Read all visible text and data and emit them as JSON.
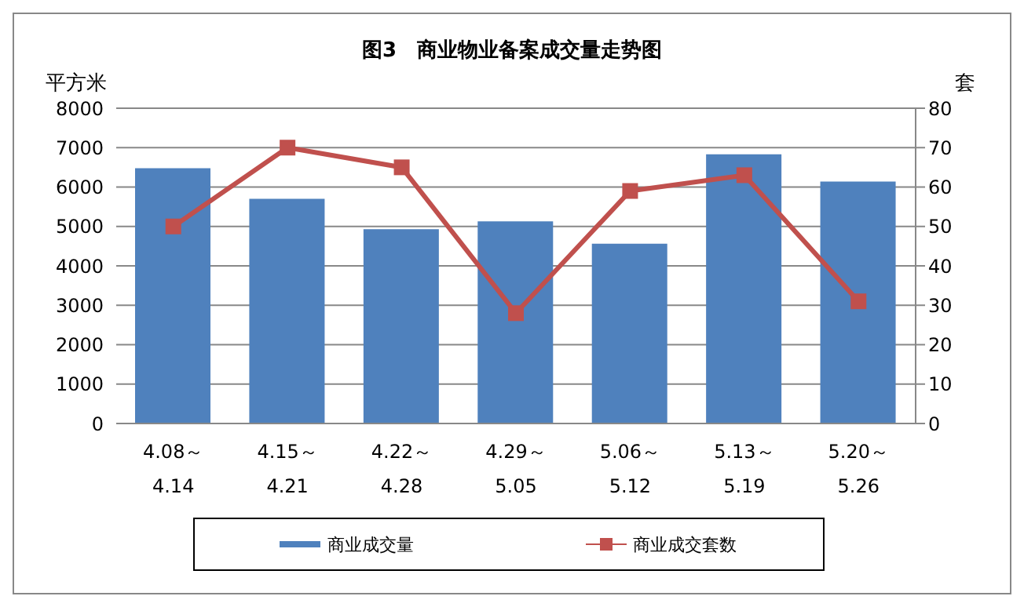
{
  "chart_data": {
    "type": "bar",
    "title": "图3　商业物业备案成交量走势图",
    "ylabel": "平方米",
    "y2label": "套",
    "categories": [
      "4.08～\n4.14",
      "4.15～\n4.21",
      "4.22～\n4.28",
      "4.29～\n5.05",
      "5.06～\n5.12",
      "5.13～\n5.19",
      "5.20～\n5.26"
    ],
    "series": [
      {
        "name": "商业成交量",
        "color": "#4f81bd",
        "values": [
          6480,
          5700,
          4930,
          5130,
          4560,
          6830,
          6140
        ]
      },
      {
        "name": "商业成交套数",
        "type": "line",
        "axis": "y2",
        "color": "#c0504d",
        "values": [
          50,
          70,
          65,
          28,
          59,
          63,
          31
        ]
      }
    ],
    "ylim": [
      0,
      8000
    ],
    "yticks": [
      0,
      1000,
      2000,
      3000,
      4000,
      5000,
      6000,
      7000,
      8000
    ],
    "y2lim": [
      0,
      80
    ],
    "y2ticks": [
      0,
      10,
      20,
      30,
      40,
      50,
      60,
      70,
      80
    ],
    "grid": "y",
    "legend": "bottom",
    "marker": "square"
  }
}
